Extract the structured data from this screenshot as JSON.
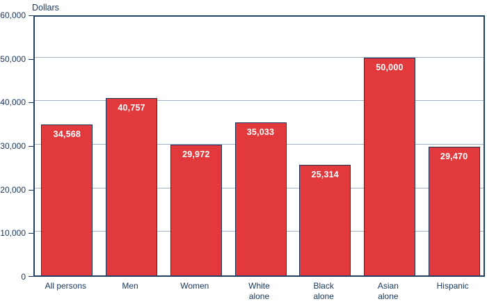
{
  "chart_data": {
    "type": "bar",
    "title": "",
    "ylabel": "Dollars",
    "xlabel": "",
    "categories": [
      "All persons",
      "Men",
      "Women",
      "White\nalone",
      "Black\nalone",
      "Asian\nalone",
      "Hispanic"
    ],
    "values": [
      34568,
      40757,
      29972,
      35033,
      25314,
      50000,
      29470
    ],
    "value_labels": [
      "34,568",
      "40,757",
      "29,972",
      "35,033",
      "25,314",
      "50,000",
      "29,470"
    ],
    "ylim": [
      0,
      60000
    ],
    "ytick_step": 10000,
    "ytick_labels": [
      "0",
      "10,000",
      "20,000",
      "30,000",
      "40,000",
      "50,000",
      "60,000"
    ],
    "grid": true,
    "legend": "none",
    "colors": {
      "bar_fill": "#e23a3c",
      "bar_border": "#17365d",
      "axis_border": "#1f3f63",
      "gridline": "#a3b2c2",
      "text": "#17365d",
      "value_text": "#ffffff",
      "background": "#ffffff"
    }
  }
}
